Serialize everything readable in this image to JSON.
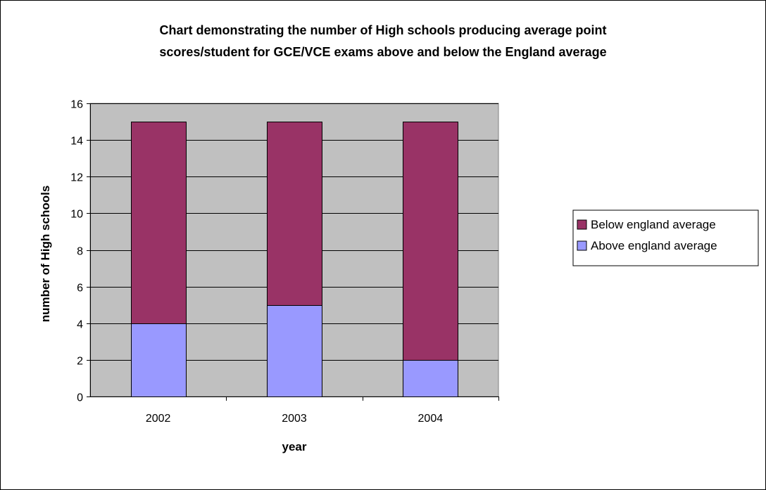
{
  "chart_data": {
    "type": "bar",
    "stacked": true,
    "title_lines": [
      "Chart demonstrating the number of High schools producing average point",
      "scores/student for GCE/VCE exams above and below the England average"
    ],
    "xlabel": "year",
    "ylabel": "number of High schools",
    "categories": [
      "2002",
      "2003",
      "2004"
    ],
    "series": [
      {
        "name": "Above england average",
        "values": [
          4,
          5,
          2
        ],
        "color": "#9999FF"
      },
      {
        "name": "Below england average",
        "values": [
          11,
          10,
          13
        ],
        "color": "#993366"
      }
    ],
    "ylim": [
      0,
      16
    ],
    "yticks": [
      "0",
      "2",
      "4",
      "6",
      "8",
      "10",
      "12",
      "14",
      "16"
    ],
    "grid": true,
    "plot_background": "#C0C0C0",
    "legend_position": "right",
    "legend_order": [
      "Below england average",
      "Above england average"
    ]
  }
}
